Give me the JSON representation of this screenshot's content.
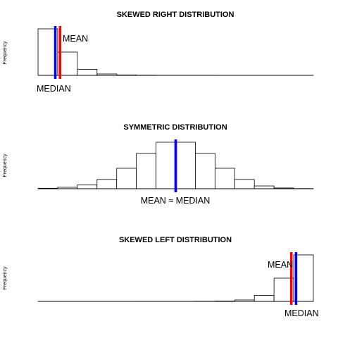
{
  "chart_data": [
    {
      "type": "bar",
      "title": "SKEWED RIGHT DISTRIBUTION",
      "xlabel": "",
      "ylabel": "Frequency",
      "values": [
        50,
        25,
        6.5,
        1.5,
        0.4,
        0.2,
        0.1,
        0.1,
        0.1,
        0.05,
        0.05,
        0.05,
        0.02,
        0.02
      ],
      "mean": 1.12,
      "median": 0.88,
      "annotations": {
        "mean": "MEAN",
        "median": "MEDIAN"
      },
      "colors": {
        "mean": "#ff0000",
        "median": "#0000ff"
      }
    },
    {
      "type": "bar",
      "title": "SYMMETRIC DISTRIBUTION",
      "xlabel": "",
      "ylabel": "Frequency",
      "values": [
        0.5,
        1.5,
        4,
        10,
        22,
        38,
        50,
        50,
        38,
        22,
        10,
        3,
        0.8,
        0.2
      ],
      "mean": 7,
      "median": 7,
      "annotations": {
        "both": "MEAN ≈ MEDIAN"
      },
      "colors": {
        "mean": "#ff0000",
        "median": "#0000ff"
      }
    },
    {
      "type": "bar",
      "title": "SKEWED LEFT DISTRIBUTION",
      "xlabel": "",
      "ylabel": "Frequency",
      "values": [
        0.02,
        0.02,
        0.05,
        0.05,
        0.05,
        0.1,
        0.1,
        0.1,
        0.2,
        0.4,
        1.5,
        6.5,
        25,
        50
      ],
      "mean": 12.88,
      "median": 13.12,
      "annotations": {
        "mean": "MEAN",
        "median": "MEDIAN"
      },
      "colors": {
        "mean": "#ff0000",
        "median": "#0000ff"
      }
    }
  ]
}
